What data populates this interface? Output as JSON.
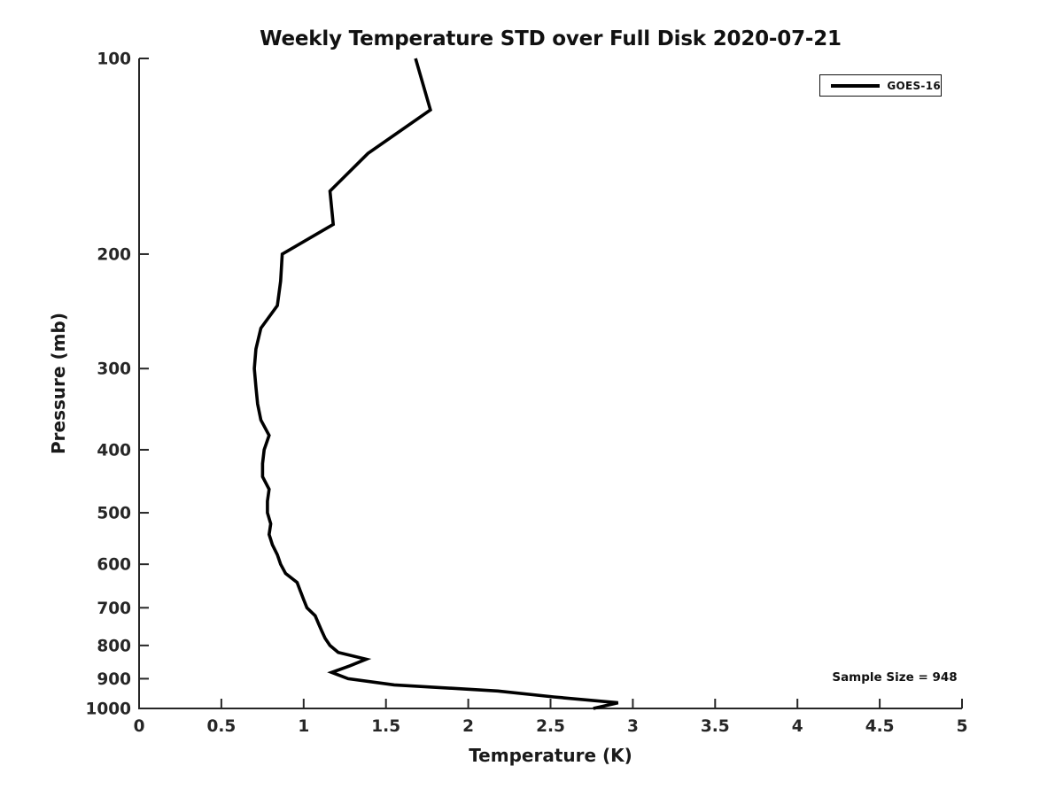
{
  "figure": {
    "background_color": "#ffffff",
    "axis_color": "#262626",
    "curve_color": "#000000"
  },
  "chart_data": {
    "type": "line",
    "title": "Weekly Temperature STD over Full Disk 2020-07-21",
    "xlabel": "Temperature (K)",
    "ylabel": "Pressure (mb)",
    "xlim": [
      0,
      5
    ],
    "x_ticks": [
      0,
      0.5,
      1,
      1.5,
      2,
      2.5,
      3,
      3.5,
      4,
      4.5,
      5
    ],
    "x_tick_labels": [
      "0",
      "0.5",
      "1",
      "1.5",
      "2",
      "2.5",
      "3",
      "3.5",
      "4",
      "4.5",
      "5"
    ],
    "y_scale": "log",
    "y_inverted": true,
    "ylim": [
      100,
      1000
    ],
    "y_ticks": [
      100,
      200,
      300,
      400,
      500,
      600,
      700,
      800,
      900,
      1000
    ],
    "y_tick_labels": [
      "100",
      "200",
      "300",
      "400",
      "500",
      "600",
      "700",
      "800",
      "900",
      "1000"
    ],
    "grid": false,
    "legend_position": "upper right",
    "series": [
      {
        "name": "GOES-16",
        "x_temperature_k": [
          1.68,
          1.77,
          1.39,
          1.16,
          1.18,
          0.87,
          0.86,
          0.84,
          0.74,
          0.71,
          0.7,
          0.71,
          0.72,
          0.74,
          0.79,
          0.76,
          0.75,
          0.75,
          0.79,
          0.78,
          0.78,
          0.8,
          0.79,
          0.81,
          0.84,
          0.86,
          0.89,
          0.96,
          0.98,
          1.0,
          1.02,
          1.07,
          1.09,
          1.11,
          1.13,
          1.16,
          1.21,
          1.38,
          1.28,
          1.17,
          1.27,
          1.55,
          2.18,
          2.52,
          2.91,
          2.76
        ],
        "y_pressure_mb": [
          100,
          120,
          140,
          160,
          180,
          200,
          220,
          240,
          260,
          280,
          300,
          320,
          340,
          360,
          380,
          400,
          420,
          440,
          460,
          480,
          500,
          520,
          540,
          560,
          580,
          600,
          620,
          640,
          660,
          680,
          700,
          720,
          740,
          760,
          780,
          800,
          820,
          840,
          860,
          880,
          900,
          920,
          940,
          960,
          980,
          1000
        ]
      }
    ],
    "annotations": [
      {
        "text": "Sample Size = 948",
        "position": "lower right"
      }
    ]
  }
}
